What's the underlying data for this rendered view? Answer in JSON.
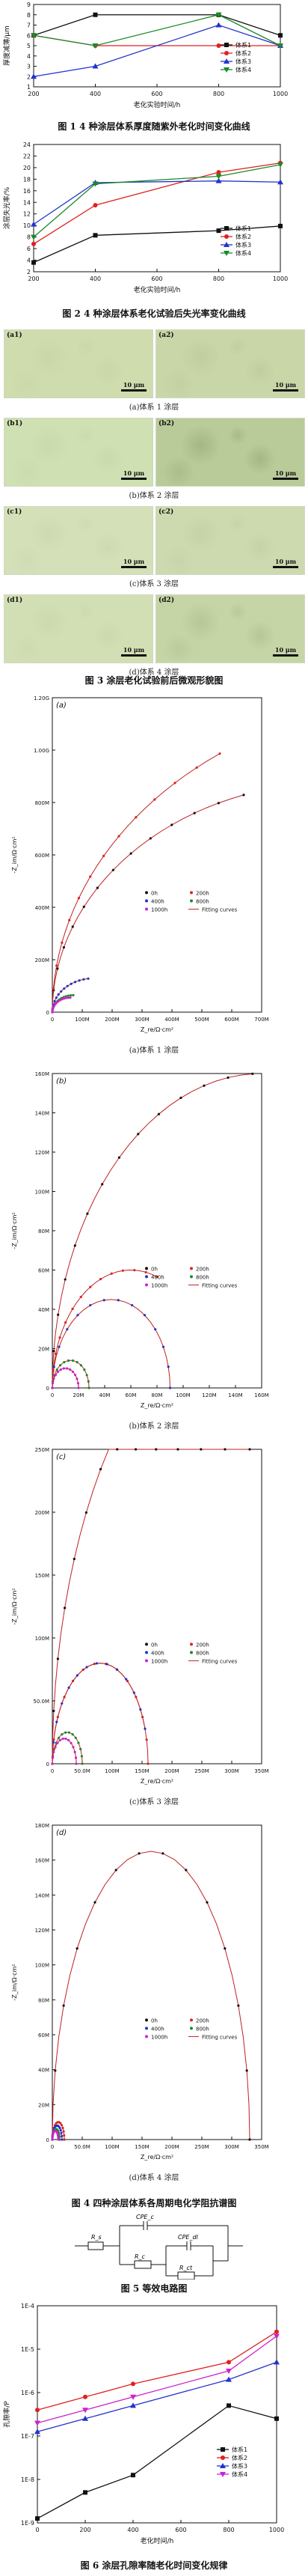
{
  "fig1": {
    "caption": "图 1  4 种涂层体系厚度随紫外老化时间变化曲线",
    "chart_data": {
      "type": "line",
      "xlabel": "老化实验时间/h",
      "ylabel": "厚度减薄/μm",
      "x": [
        200,
        400,
        800,
        1000
      ],
      "xticks": [
        200,
        400,
        600,
        800,
        1000
      ],
      "ylim": [
        1,
        9
      ],
      "yticks": [
        1,
        2,
        3,
        4,
        5,
        6,
        7,
        8,
        9
      ],
      "series": [
        {
          "name": "体系1",
          "color": "#111111",
          "marker": "square",
          "values": [
            6,
            8,
            8,
            6
          ]
        },
        {
          "name": "体系2",
          "color": "#e02020",
          "marker": "circle",
          "values": [
            6,
            5,
            5,
            5
          ]
        },
        {
          "name": "体系3",
          "color": "#2233cc",
          "marker": "triangle",
          "values": [
            2,
            3,
            7,
            5
          ]
        },
        {
          "name": "体系4",
          "color": "#1a8a2a",
          "marker": "triangle-down",
          "values": [
            6,
            5,
            8,
            5
          ]
        }
      ]
    }
  },
  "fig2": {
    "caption": "图 2  4 种涂层体系老化试验后失光率变化曲线",
    "chart_data": {
      "type": "line",
      "xlabel": "老化实验时间/h",
      "ylabel": "涂层失光率/%",
      "x": [
        200,
        400,
        800,
        1000
      ],
      "xticks": [
        200,
        400,
        600,
        800,
        1000
      ],
      "ylim": [
        2,
        24
      ],
      "yticks": [
        2,
        4,
        6,
        8,
        10,
        12,
        14,
        16,
        18,
        20,
        22,
        24
      ],
      "series": [
        {
          "name": "体系1",
          "color": "#111111",
          "marker": "square",
          "values": [
            3.6,
            8.3,
            9.1,
            9.9
          ]
        },
        {
          "name": "体系2",
          "color": "#e02020",
          "marker": "circle",
          "values": [
            6.8,
            13.5,
            19.2,
            20.8
          ]
        },
        {
          "name": "体系3",
          "color": "#2233cc",
          "marker": "triangle",
          "values": [
            10.2,
            17.4,
            17.7,
            17.5
          ]
        },
        {
          "name": "体系4",
          "color": "#1a8a2a",
          "marker": "triangle-down",
          "values": [
            8.0,
            17.2,
            18.5,
            20.5
          ]
        }
      ]
    }
  },
  "fig3": {
    "caption": "图 3  涂层老化试验前后微观形貌图",
    "scale_label": "10 μm",
    "rows": [
      {
        "left": "(a1)",
        "right": "(a2)",
        "sub": "(a)体系 1 涂层"
      },
      {
        "left": "(b1)",
        "right": "(b2)",
        "sub": "(b)体系 2 涂层"
      },
      {
        "left": "(c1)",
        "right": "(c2)",
        "sub": "(c)体系 3 涂层"
      },
      {
        "left": "(d1)",
        "right": "(d2)",
        "sub": "(d)体系 4 涂层"
      }
    ]
  },
  "fig4": {
    "caption": "图 4  四种涂层体系各周期电化学阻抗谱图",
    "xlabel": "Z_re/Ω·cm²",
    "ylabel": "-Z_im/Ω·cm²",
    "fit_label": "Fitting curves",
    "panels": [
      {
        "tag": "(a)",
        "sub": "(a)体系 1 涂层",
        "xticks": [
          "0",
          "100M",
          "200M",
          "300M",
          "400M",
          "500M",
          "600M",
          "700M"
        ],
        "xmax": 700,
        "yticks": [
          "0",
          "200M",
          "400M",
          "600M",
          "800M",
          "1.00G",
          "1.20G"
        ],
        "ymax": 1300,
        "legend": [
          "0h",
          "200h",
          "400h",
          "800h",
          "1000h"
        ],
        "arcs": [
          {
            "name": "0h",
            "color": "#111111",
            "r": 950,
            "end": 640
          },
          {
            "name": "200h",
            "color": "#e02020",
            "r": 1300,
            "end": 560
          },
          {
            "name": "400h",
            "color": "#2233cc",
            "r": 140,
            "end": 120
          },
          {
            "name": "800h",
            "color": "#1a8a2a",
            "r": 70,
            "end": 70
          },
          {
            "name": "1000h",
            "color": "#cc22cc",
            "r": 60,
            "end": 60
          }
        ]
      },
      {
        "tag": "(b)",
        "sub": "(b)体系 2 涂层",
        "xticks": [
          "0",
          "20M",
          "40M",
          "60M",
          "80M",
          "100M",
          "120M",
          "140M",
          "160M"
        ],
        "xmax": 160,
        "yticks": [
          "0",
          "20M",
          "40M",
          "60M",
          "80M",
          "100M",
          "120M",
          "140M",
          "160M"
        ],
        "ymax": 160,
        "legend": [
          "0h",
          "200h",
          "400h",
          "800h",
          "1000h"
        ],
        "arcs": [
          {
            "name": "0h",
            "color": "#111111",
            "r": 160,
            "end": 153
          },
          {
            "name": "200h",
            "color": "#e02020",
            "r": 60,
            "end": 80
          },
          {
            "name": "400h",
            "color": "#2233cc",
            "r": 45,
            "end": 90
          },
          {
            "name": "800h",
            "color": "#1a8a2a",
            "r": 14,
            "end": 28
          },
          {
            "name": "1000h",
            "color": "#cc22cc",
            "r": 10,
            "end": 20
          }
        ]
      },
      {
        "tag": "(c)",
        "sub": "(c)体系 3 涂层",
        "xticks": [
          "0",
          "50.0M",
          "100M",
          "150M",
          "200M",
          "250M",
          "300M",
          "350M"
        ],
        "xmax": 350,
        "yticks": [
          "0",
          "50.0M",
          "100M",
          "150M",
          "200M",
          "250M"
        ],
        "ymax": 250,
        "legend": [
          "0h",
          "200h",
          "400h",
          "800h",
          "1000h"
        ],
        "arcs": [
          {
            "name": "0h",
            "color": "#111111",
            "r": 380,
            "end": 330
          },
          {
            "name": "200h",
            "color": "#e02020",
            "r": 80,
            "end": 160
          },
          {
            "name": "400h",
            "color": "#2233cc",
            "r": 80,
            "end": 155
          },
          {
            "name": "800h",
            "color": "#1a8a2a",
            "r": 25,
            "end": 50
          },
          {
            "name": "1000h",
            "color": "#cc22cc",
            "r": 20,
            "end": 40
          }
        ]
      },
      {
        "tag": "(d)",
        "sub": "(d)体系 4 涂层",
        "xticks": [
          "0",
          "50.0M",
          "100M",
          "150M",
          "200M",
          "250M",
          "300M",
          "350M"
        ],
        "xmax": 350,
        "yticks": [
          "0",
          "20M",
          "40M",
          "60M",
          "80M",
          "100M",
          "120M",
          "140M",
          "160M",
          "180M"
        ],
        "ymax": 180,
        "legend": [
          "0h",
          "200h",
          "400h",
          "800h",
          "1000h"
        ],
        "arcs": [
          {
            "name": "0h",
            "color": "#111111",
            "r": 165,
            "end": 330
          },
          {
            "name": "200h",
            "color": "#e02020",
            "r": 10,
            "end": 20
          },
          {
            "name": "400h",
            "color": "#2233cc",
            "r": 8,
            "end": 16
          },
          {
            "name": "800h",
            "color": "#1a8a2a",
            "r": 6,
            "end": 12
          },
          {
            "name": "1000h",
            "color": "#cc22cc",
            "r": 5,
            "end": 10
          }
        ]
      }
    ]
  },
  "fig5": {
    "caption": "图 5  等效电路图",
    "labels": {
      "rs": "R_s",
      "cpe_c": "CPE_c",
      "cpe_dl": "CPE_dl",
      "rc": "R_c",
      "rct": "R_ct"
    }
  },
  "fig6": {
    "caption": "图 6  涂层孔隙率随老化时间变化规律",
    "chart_data": {
      "type": "line",
      "xlabel": "老化时间/h",
      "ylabel": "孔隙率/P",
      "x": [
        0,
        200,
        400,
        800,
        1000
      ],
      "xticks": [
        0,
        200,
        400,
        600,
        800,
        1000
      ],
      "yscale": "log",
      "ytick_labels": [
        "1E-9",
        "1E-8",
        "1E-7",
        "1E-6",
        "1E-5",
        "1E-4"
      ],
      "series": [
        {
          "name": "体系1",
          "color": "#111111",
          "marker": "square",
          "values_log10": [
            -8.9,
            -8.3,
            -7.9,
            -6.3,
            -6.6
          ]
        },
        {
          "name": "体系2",
          "color": "#e02020",
          "marker": "circle",
          "values_log10": [
            -6.4,
            -6.1,
            -5.8,
            -5.3,
            -4.6
          ]
        },
        {
          "name": "体系3",
          "color": "#2233cc",
          "marker": "triangle",
          "values_log10": [
            -6.9,
            -6.6,
            -6.3,
            -5.7,
            -5.3
          ]
        },
        {
          "name": "体系4",
          "color": "#cc22cc",
          "marker": "triangle-down",
          "values_log10": [
            -6.7,
            -6.4,
            -6.1,
            -5.5,
            -4.7
          ]
        }
      ]
    }
  }
}
